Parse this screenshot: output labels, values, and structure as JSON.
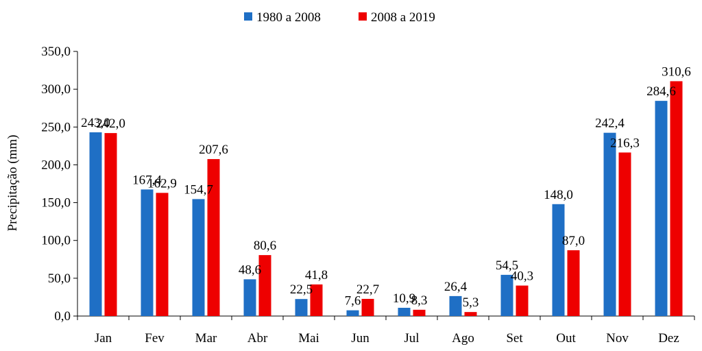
{
  "chart_data": {
    "type": "bar",
    "categories": [
      "Jan",
      "Fev",
      "Mar",
      "Abr",
      "Mai",
      "Jun",
      "Jul",
      "Ago",
      "Set",
      "Out",
      "Nov",
      "Dez"
    ],
    "series": [
      {
        "name": "1980 a 2008",
        "color": "#1F6FC5",
        "values": [
          243.0,
          167.4,
          154.7,
          48.6,
          22.5,
          7.6,
          10.9,
          26.4,
          54.5,
          148.0,
          242.4,
          284.6
        ],
        "labels": [
          "243,0",
          "167,4",
          "154,7",
          "48,6",
          "22,5",
          "7,6",
          "10,9",
          "26,4",
          "54,5",
          "148,0",
          "242,4",
          "284,6"
        ]
      },
      {
        "name": "2008 a 2019",
        "color": "#EE0000",
        "values": [
          242.0,
          162.9,
          207.6,
          80.6,
          41.8,
          22.7,
          8.3,
          5.3,
          40.3,
          87.0,
          216.3,
          310.6
        ],
        "labels": [
          "242,0",
          "162,9",
          "207,6",
          "80,6",
          "41,8",
          "22,7",
          "8,3",
          "5,3",
          "40,3",
          "87,0",
          "216,3",
          "310,6"
        ]
      }
    ],
    "ylabel": "Precipitação (mm)",
    "xlabel": "",
    "ylim": [
      0,
      350
    ],
    "yticks": [
      0,
      50,
      100,
      150,
      200,
      250,
      300,
      350
    ],
    "ytick_labels": [
      "0,0",
      "50,0",
      "100,0",
      "150,0",
      "200,0",
      "250,0",
      "300,0",
      "350,0"
    ],
    "grid": false,
    "legend_position": "top-center"
  }
}
